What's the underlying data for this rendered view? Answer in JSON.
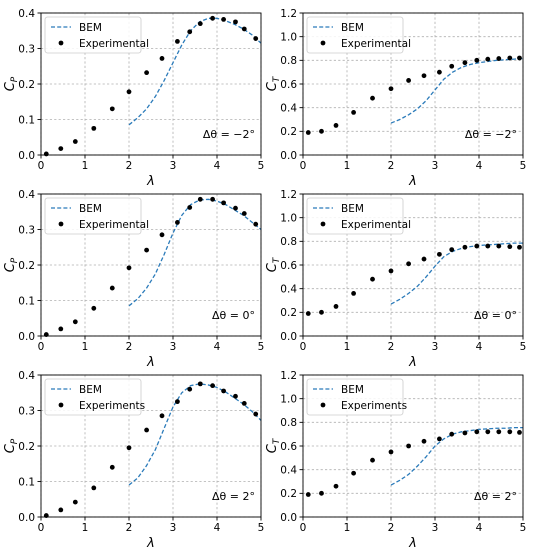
{
  "chart_data": [
    {
      "type": "line",
      "xlabel": "λ",
      "ylabel": "C_P",
      "xlim": [
        0,
        5
      ],
      "ylim": [
        0,
        0.4
      ],
      "xticks": [
        "0",
        "1",
        "2",
        "3",
        "4",
        "5"
      ],
      "yticks": [
        "0.0",
        "0.1",
        "0.2",
        "0.3",
        "0.4"
      ],
      "grid": true,
      "legend": "top-left",
      "annotation": "Δθ = −2°",
      "series": [
        {
          "name": "BEM",
          "style": "dashed",
          "color": "#2b7bba",
          "x": [
            2.0,
            2.2,
            2.4,
            2.6,
            2.8,
            3.0,
            3.2,
            3.4,
            3.6,
            3.8,
            4.0,
            4.2,
            4.4,
            4.6,
            4.8,
            5.0
          ],
          "y": [
            0.085,
            0.105,
            0.13,
            0.165,
            0.21,
            0.26,
            0.31,
            0.35,
            0.375,
            0.385,
            0.385,
            0.378,
            0.368,
            0.355,
            0.338,
            0.315
          ]
        },
        {
          "name": "Experimental",
          "style": "markers",
          "color": "#000000",
          "x": [
            0.12,
            0.45,
            0.78,
            1.2,
            1.62,
            2.0,
            2.4,
            2.75,
            3.1,
            3.38,
            3.62,
            3.9,
            4.15,
            4.42,
            4.62,
            4.88
          ],
          "y": [
            0.003,
            0.018,
            0.038,
            0.075,
            0.13,
            0.178,
            0.232,
            0.272,
            0.32,
            0.347,
            0.37,
            0.385,
            0.382,
            0.375,
            0.355,
            0.328
          ]
        }
      ]
    },
    {
      "type": "line",
      "xlabel": "λ",
      "ylabel": "C_T",
      "xlim": [
        0,
        5
      ],
      "ylim": [
        0,
        1.2
      ],
      "xticks": [
        "0",
        "1",
        "2",
        "3",
        "4",
        "5"
      ],
      "yticks": [
        "0.0",
        "0.2",
        "0.4",
        "0.6",
        "0.8",
        "1.0",
        "1.2"
      ],
      "grid": true,
      "legend": "top-left",
      "annotation": "Δθ = −2°",
      "series": [
        {
          "name": "BEM",
          "style": "dashed",
          "color": "#2b7bba",
          "x": [
            2.0,
            2.2,
            2.4,
            2.6,
            2.8,
            3.0,
            3.2,
            3.4,
            3.6,
            3.8,
            4.0,
            4.2,
            4.4,
            4.6,
            4.8,
            5.0
          ],
          "y": [
            0.27,
            0.3,
            0.34,
            0.39,
            0.46,
            0.55,
            0.64,
            0.7,
            0.74,
            0.765,
            0.78,
            0.79,
            0.8,
            0.805,
            0.81,
            0.815
          ]
        },
        {
          "name": "Experimental",
          "style": "markers",
          "color": "#000000",
          "x": [
            0.12,
            0.42,
            0.75,
            1.15,
            1.58,
            2.0,
            2.4,
            2.75,
            3.1,
            3.38,
            3.68,
            3.95,
            4.2,
            4.45,
            4.7,
            4.92
          ],
          "y": [
            0.19,
            0.2,
            0.25,
            0.36,
            0.48,
            0.56,
            0.63,
            0.67,
            0.7,
            0.75,
            0.78,
            0.8,
            0.81,
            0.815,
            0.82,
            0.82
          ]
        }
      ]
    },
    {
      "type": "line",
      "xlabel": "λ",
      "ylabel": "C_P",
      "xlim": [
        0,
        5
      ],
      "ylim": [
        0,
        0.4
      ],
      "xticks": [
        "0",
        "1",
        "2",
        "3",
        "4",
        "5"
      ],
      "yticks": [
        "0.0",
        "0.1",
        "0.2",
        "0.3",
        "0.4"
      ],
      "grid": true,
      "legend": "top-left",
      "annotation": "Δθ = 0°",
      "series": [
        {
          "name": "BEM",
          "style": "dashed",
          "color": "#2b7bba",
          "x": [
            2.0,
            2.2,
            2.4,
            2.6,
            2.8,
            3.0,
            3.2,
            3.4,
            3.6,
            3.8,
            4.0,
            4.2,
            4.4,
            4.6,
            4.8,
            5.0
          ],
          "y": [
            0.085,
            0.105,
            0.135,
            0.175,
            0.23,
            0.29,
            0.34,
            0.37,
            0.383,
            0.385,
            0.38,
            0.37,
            0.355,
            0.34,
            0.32,
            0.3
          ]
        },
        {
          "name": "Experimental",
          "style": "markers",
          "color": "#000000",
          "x": [
            0.12,
            0.45,
            0.78,
            1.2,
            1.62,
            2.0,
            2.4,
            2.75,
            3.1,
            3.38,
            3.62,
            3.9,
            4.15,
            4.42,
            4.62,
            4.88
          ],
          "y": [
            0.004,
            0.02,
            0.04,
            0.078,
            0.135,
            0.192,
            0.242,
            0.285,
            0.32,
            0.362,
            0.385,
            0.385,
            0.375,
            0.36,
            0.345,
            0.315
          ]
        }
      ]
    },
    {
      "type": "line",
      "xlabel": "λ",
      "ylabel": "C_T",
      "xlim": [
        0,
        5
      ],
      "ylim": [
        0,
        1.2
      ],
      "xticks": [
        "0",
        "1",
        "2",
        "3",
        "4",
        "5"
      ],
      "yticks": [
        "0.0",
        "0.2",
        "0.4",
        "0.6",
        "0.8",
        "1.0",
        "1.2"
      ],
      "grid": true,
      "legend": "top-left",
      "annotation": "Δθ = 0°",
      "series": [
        {
          "name": "BEM",
          "style": "dashed",
          "color": "#2b7bba",
          "x": [
            2.0,
            2.2,
            2.4,
            2.6,
            2.8,
            3.0,
            3.2,
            3.4,
            3.6,
            3.8,
            4.0,
            4.2,
            4.4,
            4.6,
            4.8,
            5.0
          ],
          "y": [
            0.27,
            0.31,
            0.36,
            0.42,
            0.5,
            0.59,
            0.67,
            0.715,
            0.74,
            0.755,
            0.765,
            0.77,
            0.775,
            0.78,
            0.785,
            0.785
          ]
        },
        {
          "name": "Experimental",
          "style": "markers",
          "color": "#000000",
          "x": [
            0.12,
            0.42,
            0.75,
            1.15,
            1.58,
            2.0,
            2.4,
            2.75,
            3.1,
            3.38,
            3.68,
            3.95,
            4.2,
            4.45,
            4.7,
            4.92
          ],
          "y": [
            0.19,
            0.2,
            0.25,
            0.36,
            0.48,
            0.55,
            0.61,
            0.65,
            0.69,
            0.73,
            0.75,
            0.76,
            0.76,
            0.76,
            0.755,
            0.75
          ]
        }
      ]
    },
    {
      "type": "line",
      "xlabel": "λ",
      "ylabel": "C_P",
      "xlim": [
        0,
        5
      ],
      "ylim": [
        0,
        0.4
      ],
      "xticks": [
        "0",
        "1",
        "2",
        "3",
        "4",
        "5"
      ],
      "yticks": [
        "0.0",
        "0.1",
        "0.2",
        "0.3",
        "0.4"
      ],
      "grid": true,
      "legend": "top-left",
      "annotation": "Δθ = 2°",
      "series": [
        {
          "name": "BEM",
          "style": "dashed",
          "color": "#2b7bba",
          "x": [
            2.0,
            2.2,
            2.4,
            2.6,
            2.8,
            3.0,
            3.2,
            3.4,
            3.6,
            3.8,
            4.0,
            4.2,
            4.4,
            4.6,
            4.8,
            5.0
          ],
          "y": [
            0.09,
            0.11,
            0.145,
            0.19,
            0.25,
            0.31,
            0.35,
            0.37,
            0.375,
            0.372,
            0.365,
            0.352,
            0.335,
            0.318,
            0.297,
            0.272
          ]
        },
        {
          "name": "Experiments",
          "style": "markers",
          "color": "#000000",
          "x": [
            0.12,
            0.45,
            0.78,
            1.2,
            1.62,
            2.0,
            2.4,
            2.75,
            3.1,
            3.38,
            3.62,
            3.9,
            4.15,
            4.42,
            4.62,
            4.88
          ],
          "y": [
            0.004,
            0.02,
            0.042,
            0.082,
            0.14,
            0.195,
            0.245,
            0.285,
            0.325,
            0.36,
            0.375,
            0.37,
            0.355,
            0.34,
            0.32,
            0.29
          ]
        }
      ]
    },
    {
      "type": "line",
      "xlabel": "λ",
      "ylabel": "C_T",
      "xlim": [
        0,
        5
      ],
      "ylim": [
        0,
        1.2
      ],
      "xticks": [
        "0",
        "1",
        "2",
        "3",
        "4",
        "5"
      ],
      "yticks": [
        "0.0",
        "0.2",
        "0.4",
        "0.6",
        "0.8",
        "1.0",
        "1.2"
      ],
      "grid": true,
      "legend": "top-left",
      "annotation": "Δθ = 2°",
      "series": [
        {
          "name": "BEM",
          "style": "dashed",
          "color": "#2b7bba",
          "x": [
            2.0,
            2.2,
            2.4,
            2.6,
            2.8,
            3.0,
            3.2,
            3.4,
            3.6,
            3.8,
            4.0,
            4.2,
            4.4,
            4.6,
            4.8,
            5.0
          ],
          "y": [
            0.27,
            0.31,
            0.36,
            0.43,
            0.51,
            0.6,
            0.66,
            0.7,
            0.72,
            0.73,
            0.74,
            0.745,
            0.75,
            0.75,
            0.755,
            0.755
          ]
        },
        {
          "name": "Experiments",
          "style": "markers",
          "color": "#000000",
          "x": [
            0.12,
            0.42,
            0.75,
            1.15,
            1.58,
            2.0,
            2.4,
            2.75,
            3.1,
            3.38,
            3.68,
            3.95,
            4.2,
            4.45,
            4.7,
            4.92
          ],
          "y": [
            0.19,
            0.2,
            0.26,
            0.37,
            0.48,
            0.55,
            0.6,
            0.64,
            0.66,
            0.7,
            0.71,
            0.72,
            0.72,
            0.72,
            0.72,
            0.715
          ]
        }
      ]
    }
  ]
}
